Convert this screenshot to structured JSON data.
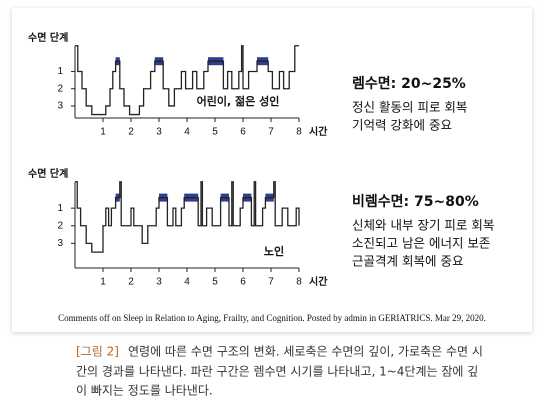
{
  "chart_data": [
    {
      "type": "step",
      "y_label": "수면 단계",
      "x_label": "시간",
      "annotation": "어린이, 젊은 성인",
      "side_title": "렘수면: 20~25%",
      "side_lines": [
        "정신 활동의 피로 회복",
        "기억력 강화에 중요"
      ],
      "x": [
        0,
        0.1,
        0.25,
        0.4,
        0.6,
        1.1,
        1.25,
        1.35,
        1.45,
        1.6,
        1.75,
        1.95,
        2.3,
        2.45,
        2.7,
        2.85,
        3.15,
        3.35,
        3.55,
        3.8,
        3.95,
        4.2,
        4.35,
        4.6,
        4.75,
        5.3,
        5.45,
        5.6,
        5.85,
        5.95,
        6.0,
        6.2,
        6.5,
        6.9,
        7.05,
        7.3,
        7.45,
        7.65,
        7.85,
        8
      ],
      "values": [
        -0.5,
        1,
        2,
        3,
        3.5,
        3,
        2,
        1,
        0.4,
        2,
        3,
        3.5,
        3,
        2,
        1,
        0.4,
        2,
        3,
        2,
        1,
        2,
        1,
        2,
        1,
        0.4,
        2,
        1,
        2,
        1,
        -0.5,
        2,
        1,
        0.4,
        1,
        2,
        1,
        2,
        1,
        -0.5,
        -0.5
      ],
      "rem": [
        [
          1.45,
          1.6
        ],
        [
          2.85,
          3.15
        ],
        [
          4.75,
          5.3
        ],
        [
          6.5,
          6.9
        ]
      ],
      "color": "#222222",
      "rem_color": "#2e3f8f",
      "xlim": [
        0,
        8
      ],
      "ylim": [
        3.7,
        -0.6
      ],
      "xticks": [
        1,
        2,
        3,
        4,
        5,
        6,
        7,
        8
      ],
      "yticks": [
        1,
        2,
        3
      ]
    },
    {
      "type": "step",
      "y_label": "수면 단계",
      "x_label": "시간",
      "annotation": "노인",
      "side_title": "비렘수면: 75~80%",
      "side_lines": [
        "신체와 내부 장기 피로 회복",
        "소진되고 남은 에너지 보존",
        "근골격계 회복에 중요"
      ],
      "x": [
        0,
        0.08,
        0.2,
        0.4,
        0.6,
        1.0,
        1.1,
        1.2,
        1.3,
        1.45,
        1.6,
        1.65,
        2.0,
        2.1,
        2.4,
        2.6,
        2.9,
        3.0,
        3.3,
        3.5,
        3.6,
        3.8,
        3.9,
        4.4,
        4.5,
        4.55,
        4.7,
        4.9,
        5.2,
        5.5,
        5.6,
        5.65,
        5.9,
        6.0,
        6.3,
        6.4,
        6.45,
        6.7,
        6.8,
        7.1,
        7.15,
        7.4,
        7.6,
        7.9,
        8
      ],
      "values": [
        -0.5,
        1,
        2,
        3,
        3.5,
        2,
        1,
        2,
        1,
        0.4,
        -0.5,
        2,
        1,
        2,
        3,
        2,
        1,
        0.4,
        2,
        1,
        2,
        1,
        0.4,
        2,
        -0.5,
        2,
        1,
        2,
        0.4,
        2,
        -0.5,
        2,
        1,
        0.4,
        2,
        -0.5,
        2,
        1,
        0.4,
        -0.5,
        2,
        1,
        2,
        1,
        2
      ],
      "rem": [
        [
          1.45,
          1.6
        ],
        [
          3.0,
          3.3
        ],
        [
          3.9,
          4.4
        ],
        [
          5.2,
          5.5
        ],
        [
          6.0,
          6.3
        ],
        [
          6.8,
          7.1
        ]
      ],
      "color": "#222222",
      "rem_color": "#2e3f8f",
      "xlim": [
        0,
        8
      ],
      "ylim": [
        4.4,
        -0.6
      ],
      "xticks": [
        1,
        2,
        3,
        4,
        5,
        6,
        7,
        8
      ],
      "yticks": [
        1,
        2,
        3
      ]
    }
  ],
  "source": "Comments off on Sleep in Relation to Aging, Frailty, and Cognition. Posted by admin in GERIATRICS. Mar 29, 2020.",
  "caption": {
    "label": "[그림 2]",
    "lines": [
      "연령에 따른 수면 구조의 변화. 세로축은 수면의 깊이, 가로축은 수면 시",
      "간의 경과를 나타낸다. 파란 구간은 렘수면 시기를 나타내고, 1~4단계는 잠에 깊",
      "이 빠지는 정도를 나타낸다."
    ]
  }
}
